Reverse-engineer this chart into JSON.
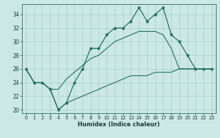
{
  "xlabel": "Humidex (Indice chaleur)",
  "x": [
    0,
    1,
    2,
    3,
    4,
    5,
    6,
    7,
    8,
    9,
    10,
    11,
    12,
    13,
    14,
    15,
    16,
    17,
    18,
    19,
    20,
    21,
    22,
    23
  ],
  "line_main": [
    26,
    24,
    24,
    23,
    20,
    21,
    24,
    26,
    29,
    29,
    31,
    32,
    32,
    33,
    35,
    33,
    34,
    35,
    31,
    30,
    28,
    26,
    26,
    26
  ],
  "line_upper": [
    26,
    24,
    24,
    23,
    23,
    24.5,
    25.5,
    26.5,
    27.5,
    28,
    29,
    30,
    30.5,
    31,
    31.5,
    31.5,
    31.5,
    31,
    29,
    26,
    26,
    26,
    26,
    26
  ],
  "line_lower": [
    26,
    24,
    24,
    23,
    20,
    21,
    21.5,
    22,
    22.5,
    23,
    23.5,
    24,
    24.5,
    25,
    25,
    25,
    25.5,
    25.5,
    25.5,
    26,
    26,
    26,
    26,
    26
  ],
  "bg_color": "#cce8e4",
  "grid_color": "#aaceca",
  "line_color": "#1a6b5a",
  "marker": "*",
  "marker_size": 3.5,
  "ylim": [
    19.5,
    35.5
  ],
  "yticks": [
    20,
    22,
    24,
    26,
    28,
    30,
    32,
    34
  ],
  "xlim": [
    -0.5,
    23.5
  ]
}
